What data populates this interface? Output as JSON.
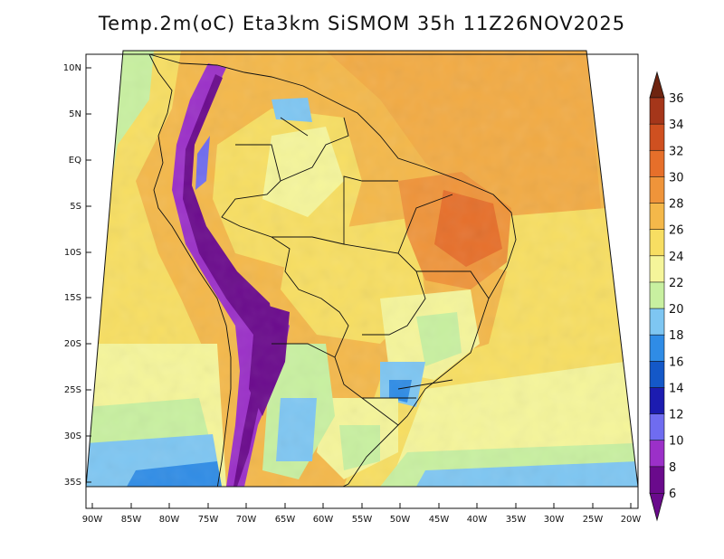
{
  "title": "Temp.2m(oC) Eta3km SiSMOM 35h 11Z26NOV2025",
  "lat_ticks": [
    "10N",
    "5N",
    "EQ",
    "5S",
    "10S",
    "15S",
    "20S",
    "25S",
    "30S",
    "35S"
  ],
  "lon_ticks": [
    "90W",
    "85W",
    "80W",
    "75W",
    "70W",
    "65W",
    "60W",
    "55W",
    "50W",
    "45W",
    "40W",
    "35W",
    "30W",
    "25W",
    "20W"
  ],
  "colorbar": {
    "labels": [
      "6",
      "8",
      "10",
      "12",
      "14",
      "16",
      "18",
      "20",
      "22",
      "24",
      "26",
      "28",
      "30",
      "32",
      "34",
      "36"
    ],
    "colors": [
      "#6a0a8c",
      "#9b30c8",
      "#6f6cf0",
      "#1c1cb0",
      "#1458c8",
      "#2f8ce6",
      "#7ec6f2",
      "#c8f0a0",
      "#f5f59a",
      "#f7de62",
      "#f4b84a",
      "#ef943a",
      "#e66f2a",
      "#cf5020",
      "#a5361a",
      "#6e2410"
    ]
  }
}
